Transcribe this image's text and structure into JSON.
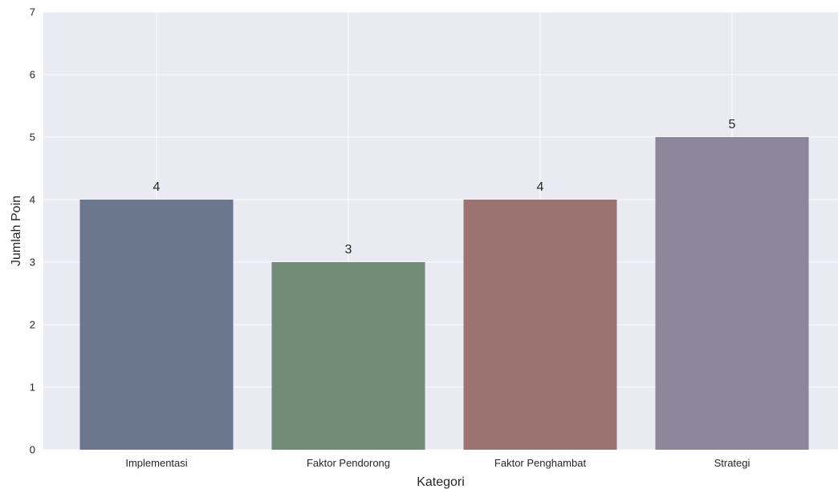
{
  "chart_data": {
    "type": "bar",
    "categories": [
      "Implementasi",
      "Faktor Pendorong",
      "Faktor Penghambat",
      "Strategi"
    ],
    "values": [
      4,
      3,
      4,
      5
    ],
    "xlabel": "Kategori",
    "ylabel": "Jumlah Poin",
    "ylim": [
      0,
      7
    ],
    "yticks": [
      0,
      1,
      2,
      3,
      4,
      5,
      6,
      7
    ],
    "grid": true,
    "bar_colors": [
      "#6b778d",
      "#718c77",
      "#9b7472",
      "#8c869b"
    ],
    "background_color": "#eaeaf2",
    "grid_color": "#ffffff"
  }
}
